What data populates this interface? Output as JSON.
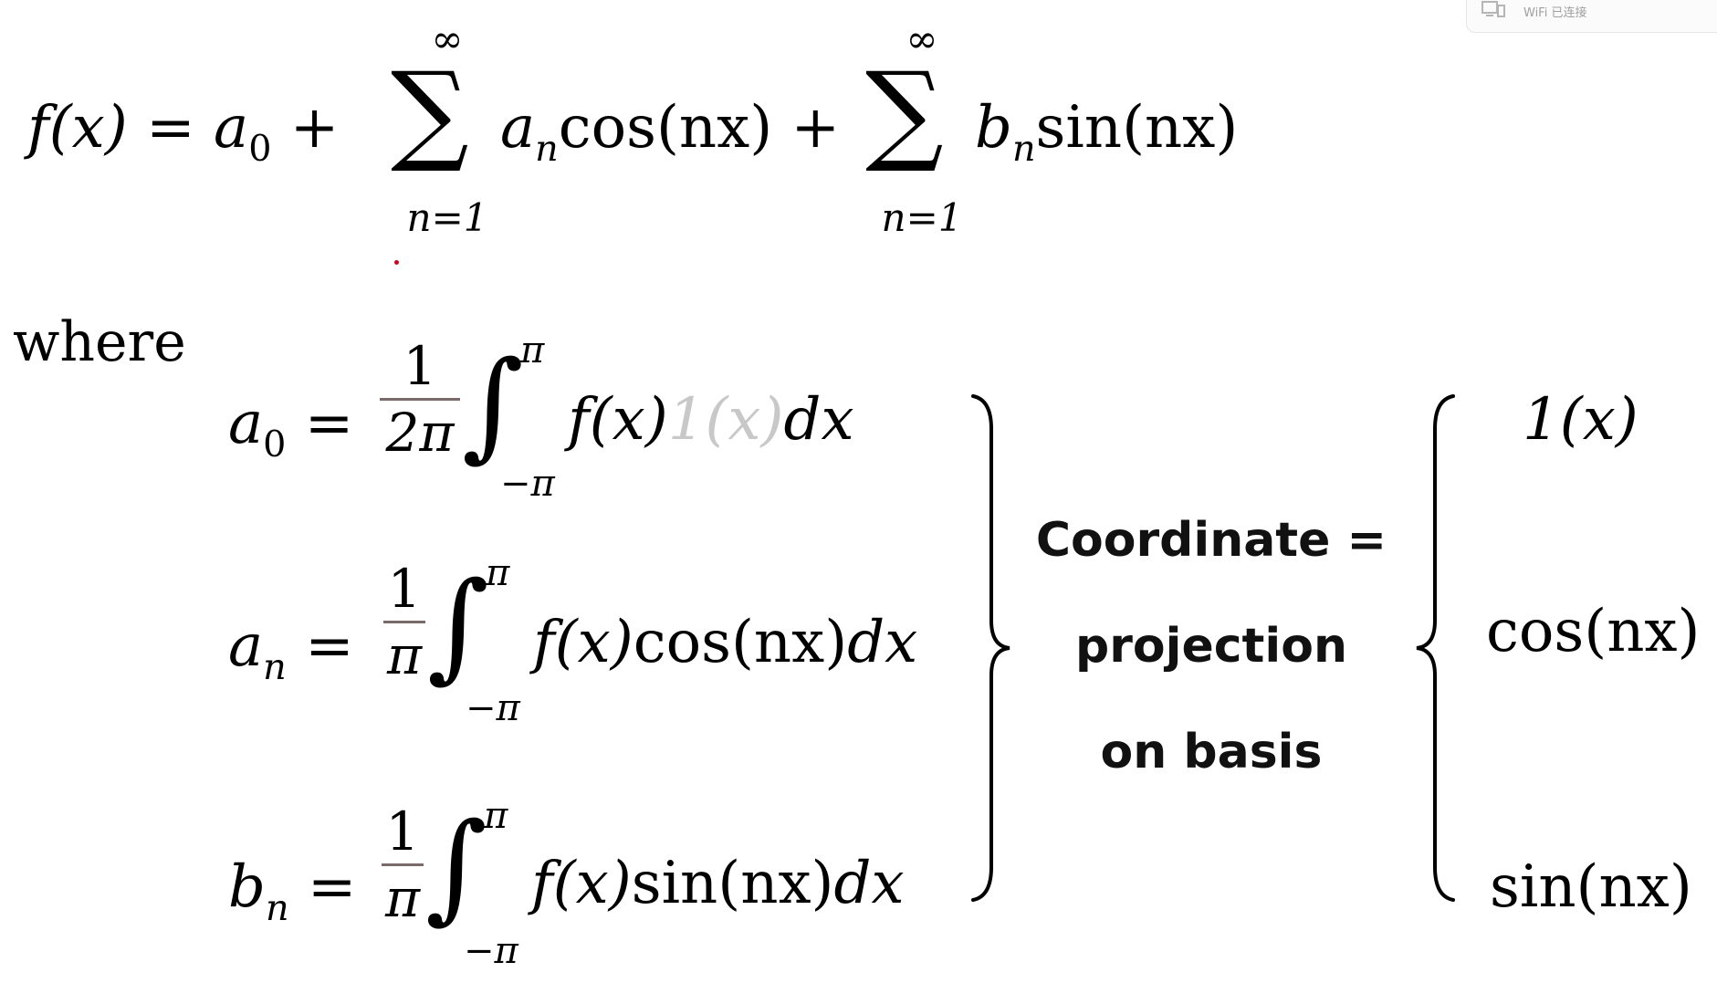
{
  "tray": {
    "icon": "device-connect-icon",
    "text": "WiFi 已连接"
  },
  "series": {
    "lhs": "f",
    "lhs_arg": "(x)",
    "eq": "=",
    "a": "a",
    "sub0": "0",
    "plus": "+",
    "sigma": "∑",
    "inf": "∞",
    "lower": "n=1",
    "sub_n": "n",
    "cos_term": "cos(nx)",
    "b": "b",
    "sin_term": "sin(nx)"
  },
  "where": "where",
  "coefficients": {
    "a0": {
      "var": "a",
      "sub": "0",
      "eq": "=",
      "num": "1",
      "den": "2π",
      "int": "∫",
      "upper": "π",
      "lower": "−π",
      "f": "f",
      "farg": "(x)",
      "basis": "1(x)",
      "dx": "dx"
    },
    "an": {
      "var": "a",
      "sub": "n",
      "eq": "=",
      "num": "1",
      "den": "π",
      "int": "∫",
      "upper": "π",
      "lower": "−π",
      "f": "f",
      "farg": "(x)",
      "basis": "cos(nx)",
      "dx": "dx"
    },
    "bn": {
      "var": "b",
      "sub": "n",
      "eq": "=",
      "num": "1",
      "den": "π",
      "int": "∫",
      "upper": "π",
      "lower": "−π",
      "f": "f",
      "farg": "(x)",
      "basis": "sin(nx)",
      "dx": "dx"
    }
  },
  "label": {
    "line1": "Coordinate =",
    "line2": "projection",
    "line3": "on basis"
  },
  "basis": {
    "one": "1(x)",
    "cos": "cos(nx)",
    "sin": "sin(nx)"
  },
  "colors": {
    "basis_grey": "#c8c8c8",
    "fraction_bar": "#7a6a6a"
  }
}
